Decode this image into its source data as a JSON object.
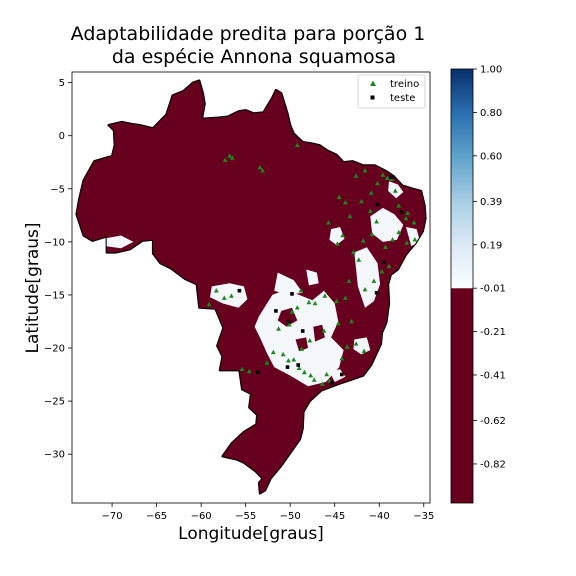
{
  "title": {
    "line1": "Adaptabilidade predita para porção 1",
    "line2": "da espécie Annona squamosa"
  },
  "chart_data": {
    "type": "heatmap",
    "title": "Adaptabilidade predita para porção 1 da espécie Annona squamosa",
    "xlabel": "Longitude[graus]",
    "ylabel": "Latitude[graus]",
    "xlim": [
      -74.5,
      -34.3
    ],
    "ylim": [
      -34.6,
      6.0
    ],
    "x_ticks": [
      -70,
      -65,
      -60,
      -55,
      -50,
      -45,
      -40,
      -35
    ],
    "x_tick_labels": [
      "−70",
      "−65",
      "−60",
      "−55",
      "−50",
      "−45",
      "−40",
      "−35"
    ],
    "y_ticks": [
      5,
      0,
      -5,
      -10,
      -15,
      -20,
      -25,
      -30
    ],
    "y_tick_labels": [
      "5",
      "0",
      "−5",
      "−10",
      "−15",
      "−20",
      "−25",
      "−30"
    ],
    "grid": false,
    "legend_position": "top-right",
    "colors": {
      "low": "#67001f",
      "outline": "#000000",
      "high_light": "#f4f7fb",
      "treino": "#1a8a1a",
      "teste": "#000000"
    },
    "colorbar": {
      "ticks": [
        1.0,
        0.8,
        0.6,
        0.39,
        0.19,
        -0.01,
        -0.21,
        -0.41,
        -0.62,
        -0.82
      ],
      "tick_labels": [
        "1.00",
        "0.80",
        "0.60",
        "0.39",
        "0.19",
        "-0.01",
        "-0.21",
        "-0.41",
        "-0.62",
        "-0.82"
      ],
      "range": [
        -1.0,
        1.0
      ],
      "split_value": -0.01,
      "low_color": "#67001f",
      "gradient": [
        "#fbfdff",
        "#dbe9f6",
        "#a6cde3",
        "#5fa2cc",
        "#2a6fae",
        "#08306b"
      ]
    },
    "series": [
      {
        "name": "treino",
        "marker": "triangle",
        "points": [
          [
            -57.3,
            -2.3
          ],
          [
            -56.8,
            -1.9
          ],
          [
            -56.5,
            -2.1
          ],
          [
            -53.4,
            -3.0
          ],
          [
            -53.1,
            -3.3
          ],
          [
            -49.2,
            -0.9
          ],
          [
            -44.5,
            -5.8
          ],
          [
            -43.8,
            -6.3
          ],
          [
            -42.6,
            -3.8
          ],
          [
            -41.6,
            -3.3
          ],
          [
            -40.9,
            -5.4
          ],
          [
            -40.2,
            -4.5
          ],
          [
            -39.6,
            -3.7
          ],
          [
            -39.1,
            -4.0
          ],
          [
            -38.6,
            -4.1
          ],
          [
            -38.2,
            -5.2
          ],
          [
            -37.8,
            -6.6
          ],
          [
            -36.8,
            -7.3
          ],
          [
            -36.1,
            -8.2
          ],
          [
            -36.0,
            -9.8
          ],
          [
            -36.9,
            -10.1
          ],
          [
            -37.8,
            -9.1
          ],
          [
            -38.5,
            -9.8
          ],
          [
            -39.3,
            -10.5
          ],
          [
            -40.3,
            -8.1
          ],
          [
            -40.8,
            -9.3
          ],
          [
            -41.8,
            -9.9
          ],
          [
            -42.3,
            -11.7
          ],
          [
            -42.9,
            -11.0
          ],
          [
            -44.1,
            -9.4
          ],
          [
            -44.7,
            -10.2
          ],
          [
            -39.7,
            -12.8
          ],
          [
            -40.6,
            -13.7
          ],
          [
            -41.6,
            -14.5
          ],
          [
            -43.4,
            -13.7
          ],
          [
            -43.8,
            -15.3
          ],
          [
            -44.8,
            -15.6
          ],
          [
            -46.1,
            -15.1
          ],
          [
            -47.2,
            -15.8
          ],
          [
            -47.9,
            -15.7
          ],
          [
            -49.2,
            -16.2
          ],
          [
            -49.8,
            -16.6
          ],
          [
            -50.1,
            -17.8
          ],
          [
            -51.3,
            -18.2
          ],
          [
            -51.9,
            -20.4
          ],
          [
            -50.8,
            -20.6
          ],
          [
            -50.2,
            -21.2
          ],
          [
            -49.6,
            -21.1
          ],
          [
            -49.0,
            -21.9
          ],
          [
            -48.4,
            -22.3
          ],
          [
            -47.7,
            -22.6
          ],
          [
            -47.3,
            -23.0
          ],
          [
            -46.4,
            -23.4
          ],
          [
            -45.6,
            -23.1
          ],
          [
            -45.9,
            -22.5
          ],
          [
            -44.2,
            -21.0
          ],
          [
            -43.6,
            -19.9
          ],
          [
            -42.6,
            -19.6
          ],
          [
            -41.7,
            -20.3
          ],
          [
            -43.1,
            -17.5
          ],
          [
            -44.6,
            -17.7
          ],
          [
            -46.2,
            -18.4
          ],
          [
            -54.6,
            -22.2
          ],
          [
            -55.4,
            -22.0
          ],
          [
            -56.6,
            -15.1
          ],
          [
            -57.4,
            -15.3
          ],
          [
            -58.3,
            -14.6
          ],
          [
            -59.1,
            -15.9
          ],
          [
            -52.6,
            -21.4
          ],
          [
            -48.7,
            -20.1
          ],
          [
            -47.8,
            -19.3
          ],
          [
            -48.8,
            -14.6
          ],
          [
            -45.7,
            -8.2
          ],
          [
            -43.3,
            -7.6
          ],
          [
            -42.0,
            -6.2
          ],
          [
            -41.0,
            -7.1
          ],
          [
            -38.9,
            -12.3
          ],
          [
            -37.0,
            -7.8
          ]
        ]
      },
      {
        "name": "teste",
        "marker": "square",
        "points": [
          [
            -38.6,
            -3.9
          ],
          [
            -40.2,
            -6.5
          ],
          [
            -37.5,
            -7.2
          ],
          [
            -39.5,
            -11.9
          ],
          [
            -40.3,
            -14.8
          ],
          [
            -49.8,
            -14.9
          ],
          [
            -50.2,
            -17.5
          ],
          [
            -48.6,
            -18.4
          ],
          [
            -49.1,
            -21.6
          ],
          [
            -50.3,
            -21.8
          ],
          [
            -45.3,
            -23.3
          ],
          [
            -44.2,
            -22.5
          ],
          [
            -51.6,
            -16.5
          ],
          [
            -53.6,
            -22.3
          ],
          [
            -55.7,
            -14.6
          ]
        ]
      }
    ]
  }
}
